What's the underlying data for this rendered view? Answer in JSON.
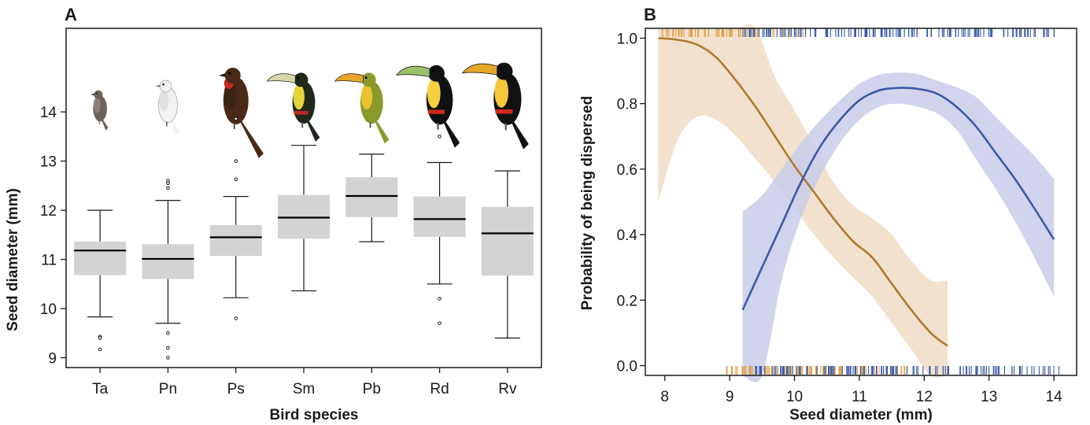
{
  "chart_data": [
    {
      "panel_label": "A",
      "type": "box",
      "xlabel": "Bird species",
      "ylabel": "Seed diameter (mm)",
      "ylim": [
        8.8,
        15.7
      ],
      "yticks": [
        9,
        10,
        11,
        12,
        13,
        14
      ],
      "box_color": "#d3d3d4",
      "categories": [
        "Ta",
        "Pn",
        "Ps",
        "Sm",
        "Pb",
        "Rd",
        "Rv"
      ],
      "boxes": [
        {
          "label": "Ta",
          "q1": 10.68,
          "median": 11.18,
          "q3": 11.36,
          "whisker_low": 9.83,
          "whisker_high": 12.0,
          "outliers": [
            9.43,
            9.4,
            9.17
          ]
        },
        {
          "label": "Pn",
          "q1": 10.6,
          "median": 11.01,
          "q3": 11.31,
          "whisker_low": 9.7,
          "whisker_high": 12.2,
          "outliers": [
            12.6,
            12.55,
            12.45,
            9.5,
            9.2,
            9.0
          ]
        },
        {
          "label": "Ps",
          "q1": 11.07,
          "median": 11.45,
          "q3": 11.7,
          "whisker_low": 10.22,
          "whisker_high": 12.28,
          "outliers": [
            13.0,
            12.63,
            9.8,
            13.86
          ]
        },
        {
          "label": "Sm",
          "q1": 11.42,
          "median": 11.85,
          "q3": 12.31,
          "whisker_low": 10.36,
          "whisker_high": 13.32,
          "outliers": []
        },
        {
          "label": "Pb",
          "q1": 11.86,
          "median": 12.29,
          "q3": 12.67,
          "whisker_low": 11.36,
          "whisker_high": 13.14,
          "outliers": []
        },
        {
          "label": "Rd",
          "q1": 11.46,
          "median": 11.82,
          "q3": 12.28,
          "whisker_low": 10.5,
          "whisker_high": 12.97,
          "outliers": [
            13.5,
            10.2,
            9.7
          ]
        },
        {
          "label": "Rv",
          "q1": 10.67,
          "median": 11.53,
          "q3": 12.07,
          "whisker_low": 9.4,
          "whisker_high": 12.8,
          "outliers": []
        }
      ],
      "bird_icons": [
        "small-brown-bird-icon",
        "white-bellbird-icon",
        "guan-icon",
        "aracari-icon",
        "yellow-toucanet-icon",
        "channel-billed-toucan-icon",
        "green-billed-toucan-icon"
      ]
    },
    {
      "panel_label": "B",
      "type": "line",
      "xlabel": "Seed diameter (mm)",
      "ylabel": "Probability of being dispersed",
      "xlim": [
        7.7,
        14.35
      ],
      "ylim": [
        -0.03,
        1.03
      ],
      "xticks": [
        8,
        9,
        10,
        11,
        12,
        13,
        14
      ],
      "yticks": [
        0.0,
        0.2,
        0.4,
        0.6,
        0.8,
        1.0
      ],
      "series": [
        {
          "color": "#b07a2e",
          "band_color": "#f0dcc4",
          "rug_color": "#dfa24a",
          "x": [
            7.9,
            8.2,
            8.5,
            8.8,
            9.1,
            9.4,
            9.7,
            10.0,
            10.3,
            10.6,
            10.9,
            11.2,
            11.5,
            11.8,
            12.1,
            12.36
          ],
          "y": [
            1.0,
            0.995,
            0.98,
            0.94,
            0.87,
            0.79,
            0.7,
            0.61,
            0.53,
            0.45,
            0.38,
            0.33,
            0.25,
            0.17,
            0.1,
            0.06
          ],
          "lower": [
            0.5,
            0.69,
            0.76,
            0.75,
            0.7,
            0.63,
            0.56,
            0.48,
            0.4,
            0.33,
            0.27,
            0.21,
            0.13,
            0.05,
            -0.03,
            -0.03
          ],
          "upper": [
            1.03,
            1.03,
            1.03,
            1.03,
            1.03,
            1.03,
            0.88,
            0.78,
            0.67,
            0.56,
            0.49,
            0.45,
            0.4,
            0.32,
            0.26,
            0.26
          ]
        },
        {
          "color": "#3a5ba8",
          "band_color": "#c9cde9",
          "rug_color": "#3a5ba8",
          "x": [
            9.2,
            9.5,
            9.8,
            10.1,
            10.4,
            10.7,
            11.0,
            11.3,
            11.6,
            11.9,
            12.2,
            12.5,
            12.8,
            13.1,
            13.4,
            13.7,
            14.0
          ],
          "y": [
            0.17,
            0.3,
            0.43,
            0.56,
            0.67,
            0.75,
            0.81,
            0.84,
            0.848,
            0.845,
            0.83,
            0.79,
            0.73,
            0.65,
            0.57,
            0.48,
            0.385
          ],
          "lower": [
            -0.03,
            -0.03,
            0.26,
            0.45,
            0.58,
            0.68,
            0.75,
            0.79,
            0.8,
            0.79,
            0.77,
            0.72,
            0.63,
            0.54,
            0.44,
            0.33,
            0.21
          ],
          "upper": [
            0.47,
            0.52,
            0.6,
            0.68,
            0.75,
            0.81,
            0.86,
            0.888,
            0.895,
            0.89,
            0.87,
            0.85,
            0.82,
            0.76,
            0.7,
            0.64,
            0.57
          ]
        }
      ]
    }
  ]
}
